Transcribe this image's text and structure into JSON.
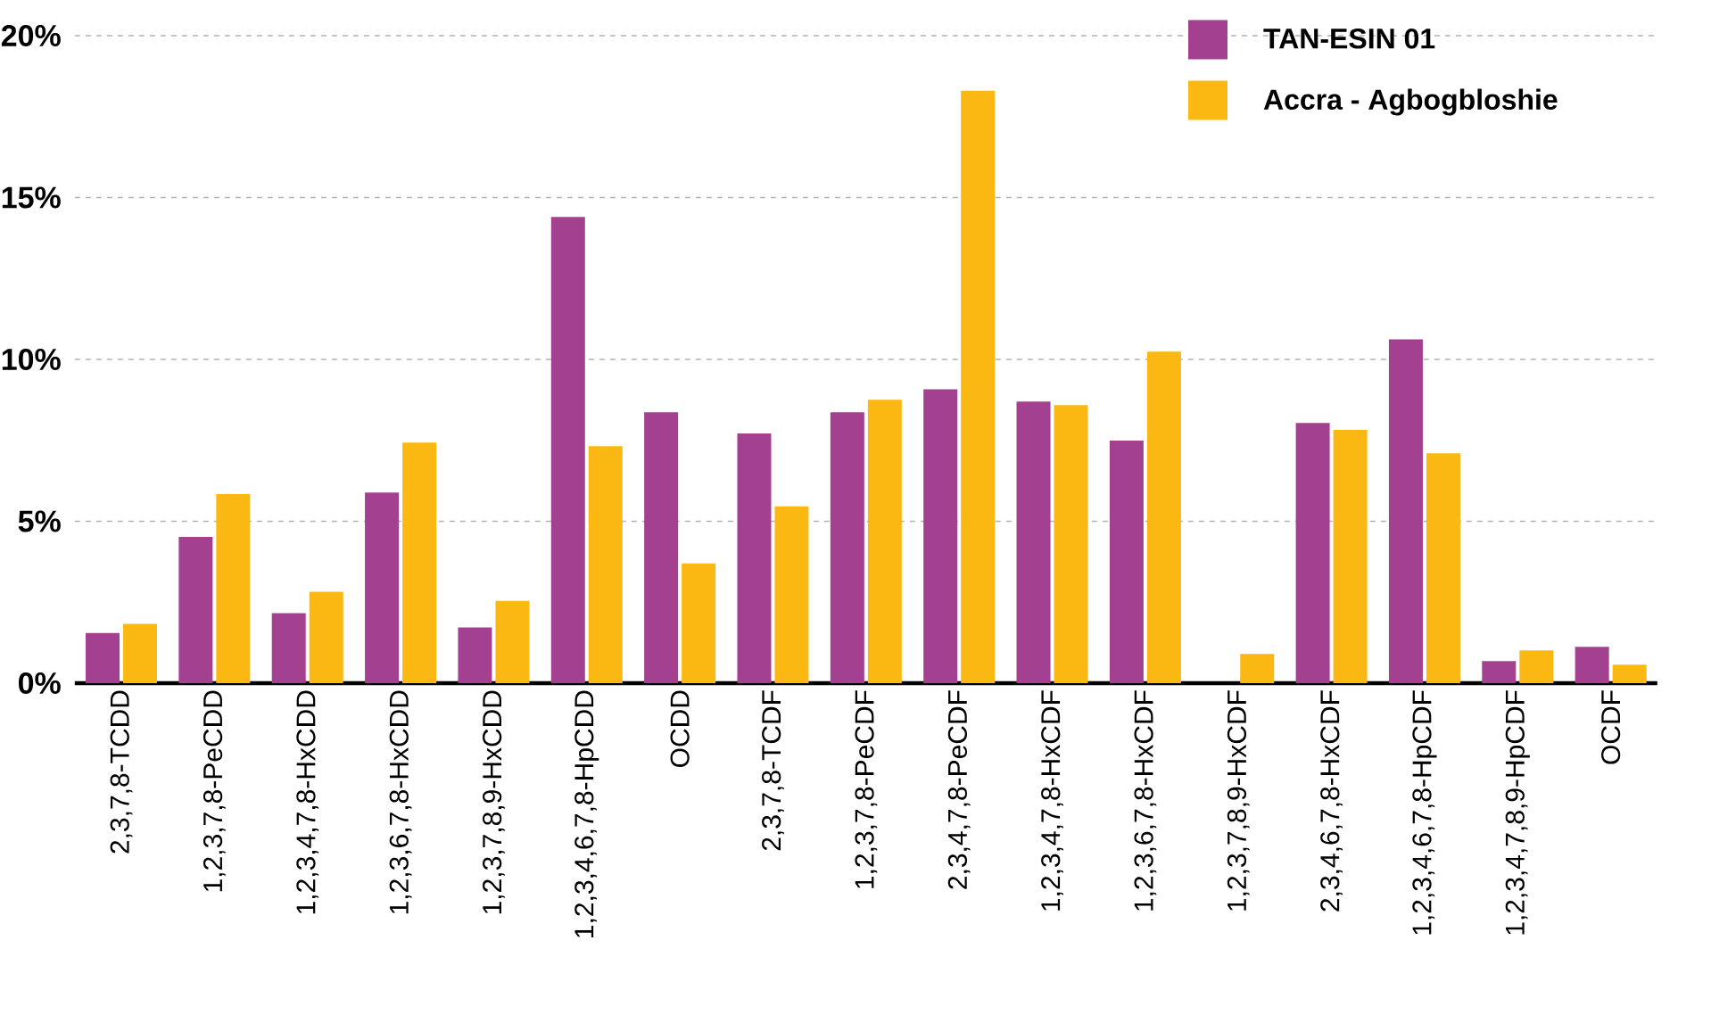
{
  "chart_data": {
    "type": "bar",
    "categories": [
      "2,3,7,8-TCDD",
      "1,2,3,7,8-PeCDD",
      "1,2,3,4,7,8-HxCDD",
      "1,2,3,6,7,8-HxCDD",
      "1,2,3,7,8,9-HxCDD",
      "1,2,3,4,6,7,8-HpCDD",
      "OCDD",
      "2,3,7,8-TCDF",
      "1,2,3,7,8-PeCDF",
      "2,3,4,7,8-PeCDF",
      "1,2,3,4,7,8-HxCDF",
      "1,2,3,6,7,8-HxCDF",
      "1,2,3,7,8,9-HxCDF",
      "2,3,4,6,7,8-HxCDF",
      "1,2,3,4,6,7,8-HpCDF",
      "1,2,3,4,7,8,9-HpCDF",
      "OCDF"
    ],
    "series": [
      {
        "name": "TAN-ESIN 01",
        "color": "#a3408f",
        "values": [
          1.55,
          4.52,
          2.16,
          5.89,
          1.72,
          14.4,
          8.37,
          7.71,
          8.37,
          9.08,
          8.7,
          7.49,
          null,
          8.04,
          10.62,
          0.68,
          1.12
        ]
      },
      {
        "name": "Accra - Agbogbloshie",
        "color": "#fbb813",
        "values": [
          1.83,
          5.84,
          2.82,
          7.43,
          2.54,
          7.32,
          3.7,
          5.46,
          8.75,
          18.3,
          8.59,
          10.24,
          0.9,
          7.82,
          7.1,
          1.01,
          0.57
        ]
      }
    ],
    "ylim": [
      0,
      20
    ],
    "yticks": [
      {
        "value": 0,
        "label": "0%"
      },
      {
        "value": 5,
        "label": "5%"
      },
      {
        "value": 10,
        "label": "10%"
      },
      {
        "value": 15,
        "label": "15%"
      },
      {
        "value": 20,
        "label": "20%"
      }
    ],
    "grid": "y",
    "legend": "top right"
  }
}
